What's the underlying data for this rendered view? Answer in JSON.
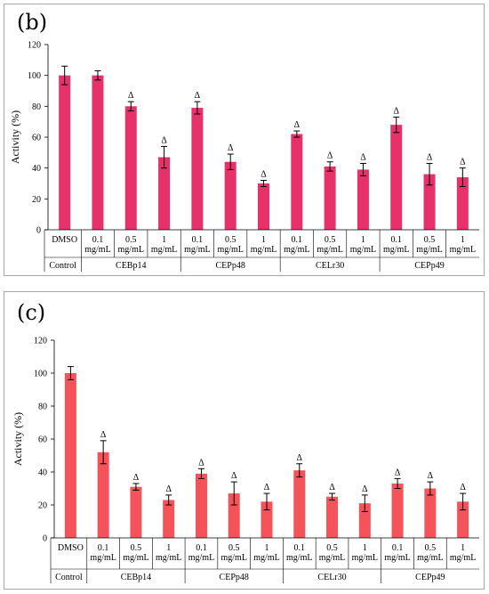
{
  "chart_data": [
    {
      "panel_label": "(b)",
      "type": "bar",
      "ylabel": "Activity (%)",
      "ylim": [
        0,
        120
      ],
      "yticks": [
        0,
        20,
        40,
        60,
        80,
        100,
        120
      ],
      "bar_color": "#e8306a",
      "categories": [
        "DMSO",
        "0.1 mg/mL",
        "0.5 mg/mL",
        "1 mg/mL",
        "0.1 mg/mL",
        "0.5 mg/mL",
        "1 mg/mL",
        "0.1 mg/mL",
        "0.5 mg/mL",
        "1 mg/mL",
        "0.1 mg/mL",
        "0.5 mg/mL",
        "1 mg/mL"
      ],
      "groups": [
        {
          "name": "Control",
          "span": 1
        },
        {
          "name": "CEBp14",
          "span": 3
        },
        {
          "name": "CEPp48",
          "span": 3
        },
        {
          "name": "CELr30",
          "span": 3
        },
        {
          "name": "CEPp49",
          "span": 3
        }
      ],
      "values": [
        100,
        100,
        80,
        47,
        79,
        44,
        30,
        62,
        41,
        39,
        68,
        36,
        34
      ],
      "errors": [
        6,
        3,
        3,
        7,
        4,
        5,
        2,
        2,
        3,
        4,
        5,
        7,
        6
      ],
      "markers": [
        "",
        "",
        "Δ",
        "Δ",
        "Δ",
        "Δ",
        "Δ",
        "Δ",
        "Δ",
        "Δ",
        "Δ",
        "Δ",
        "Δ"
      ]
    },
    {
      "panel_label": "(c)",
      "type": "bar",
      "ylabel": "Activity (%)",
      "ylim": [
        0,
        120
      ],
      "yticks": [
        0,
        20,
        40,
        60,
        80,
        100,
        120
      ],
      "bar_color": "#f4535a",
      "categories": [
        "DMSO",
        "0.1 mg/mL",
        "0.5 mg/mL",
        "1 mg/mL",
        "0.1 mg/mL",
        "0.5 mg/mL",
        "1 mg/mL",
        "0.1 mg/mL",
        "0.5 mg/mL",
        "1 mg/mL",
        "0.1 mg/mL",
        "0.5 mg/mL",
        "1 mg/mL"
      ],
      "groups": [
        {
          "name": "Control",
          "span": 1
        },
        {
          "name": "CEBp14",
          "span": 3
        },
        {
          "name": "CEPp48",
          "span": 3
        },
        {
          "name": "CELr30",
          "span": 3
        },
        {
          "name": "CEPp49",
          "span": 3
        }
      ],
      "values": [
        100,
        52,
        31,
        23,
        39,
        27,
        22,
        41,
        25,
        21,
        33,
        30,
        22
      ],
      "errors": [
        4,
        7,
        2,
        3,
        3,
        7,
        5,
        4,
        2,
        5,
        3,
        4,
        5
      ],
      "markers": [
        "",
        "Δ",
        "Δ",
        "Δ",
        "Δ",
        "Δ",
        "Δ",
        "Δ",
        "Δ",
        "Δ",
        "Δ",
        "Δ",
        "Δ"
      ]
    }
  ]
}
